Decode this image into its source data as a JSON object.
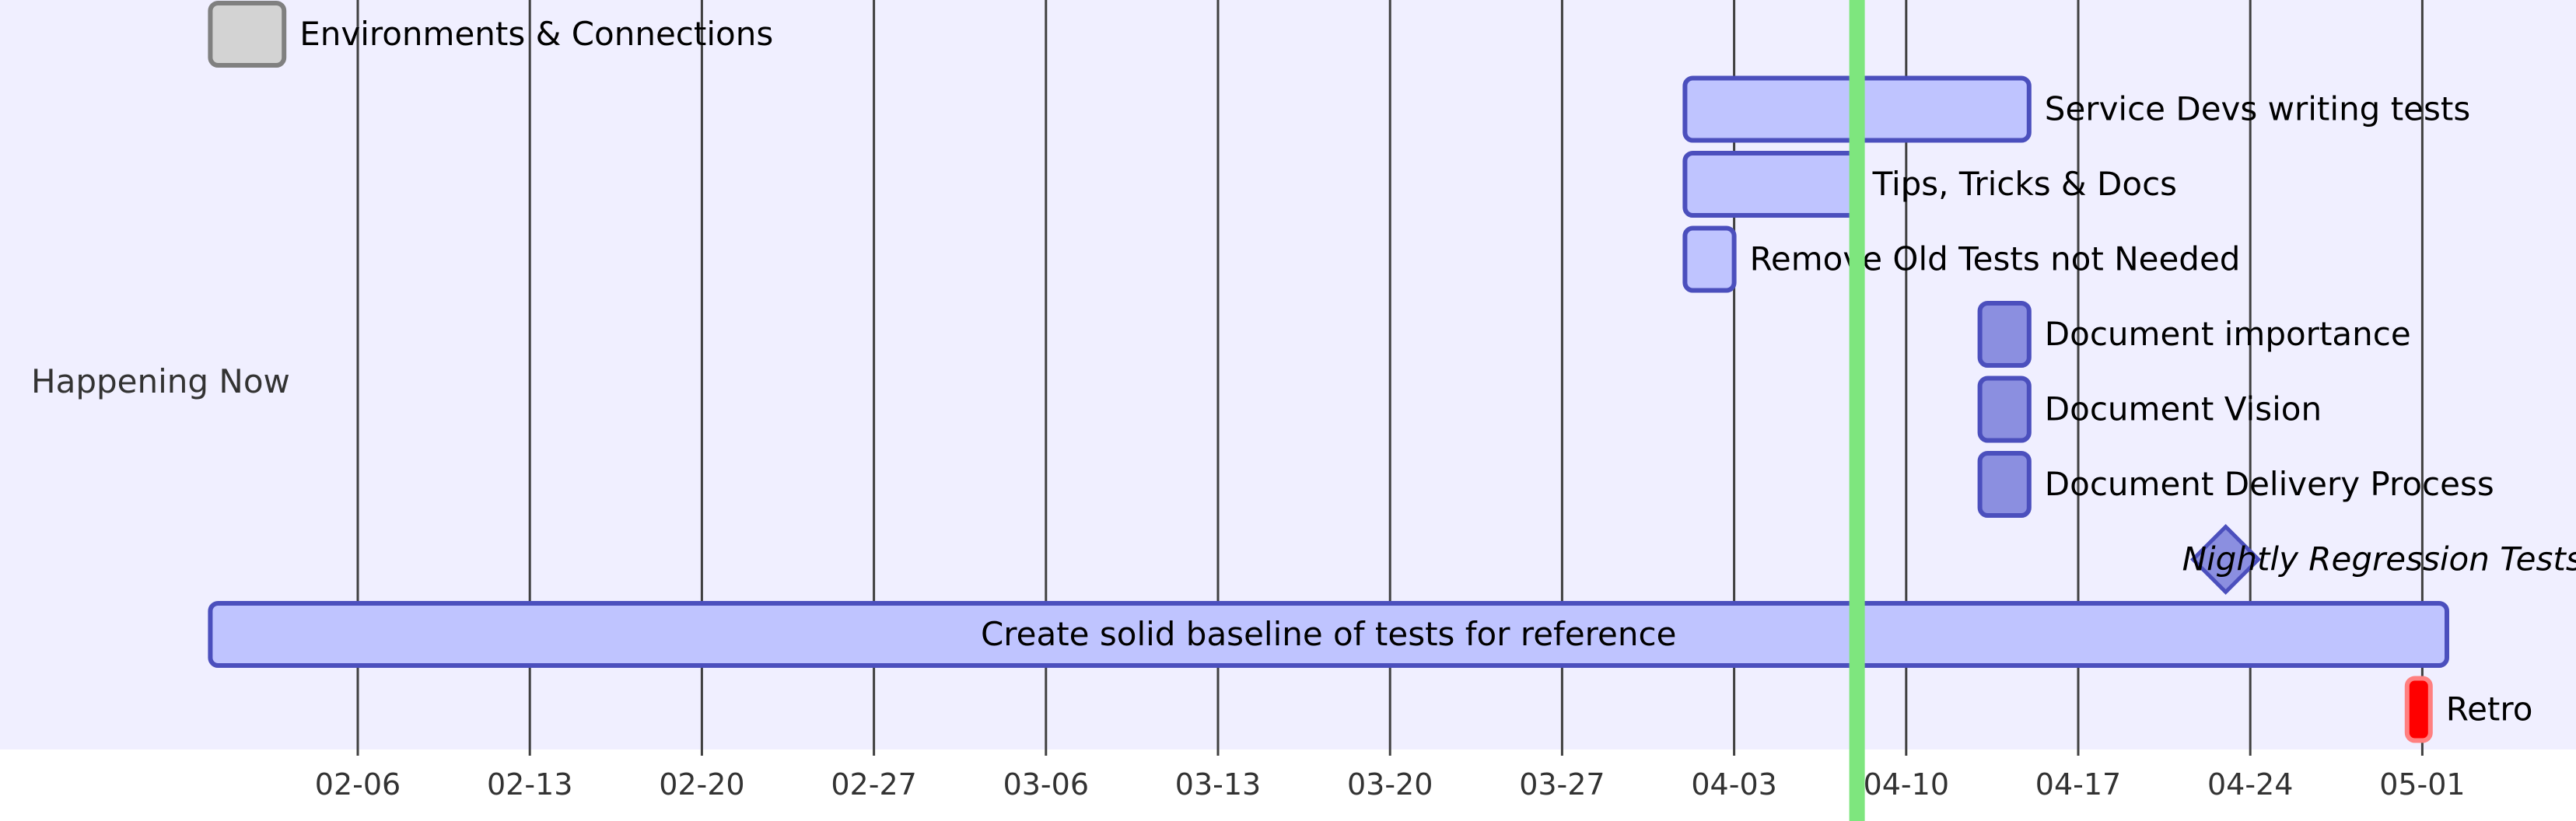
{
  "chart_data": {
    "type": "gantt",
    "x_axis": {
      "ticks": [
        "02-06",
        "02-13",
        "02-20",
        "02-27",
        "03-06",
        "03-13",
        "03-20",
        "03-27",
        "04-03",
        "04-10",
        "04-17",
        "04-24",
        "05-01"
      ]
    },
    "today_marker": "04-08",
    "sections": [
      {
        "name": "Happening Now"
      }
    ],
    "tasks": [
      {
        "label": "Environments & Connections",
        "start": "01-31",
        "end": "02-03",
        "status": "done"
      },
      {
        "label": "Service Devs writing tests",
        "start": "04-01",
        "end": "04-15",
        "status": "normal"
      },
      {
        "label": "Tips, Tricks & Docs",
        "start": "04-01",
        "end": "04-08",
        "status": "normal"
      },
      {
        "label": "Remove Old Tests not Needed",
        "start": "04-01",
        "end": "04-03",
        "status": "normal"
      },
      {
        "label": "Document importance",
        "start": "04-13",
        "end": "04-15",
        "status": "active"
      },
      {
        "label": "Document Vision",
        "start": "04-13",
        "end": "04-15",
        "status": "active"
      },
      {
        "label": "Document Delivery Process",
        "start": "04-13",
        "end": "04-15",
        "status": "active"
      },
      {
        "label": "Nightly Regression Tests",
        "start": "04-23",
        "end": "04-23",
        "status": "milestone"
      },
      {
        "label": "Create solid baseline of tests for reference",
        "start": "01-31",
        "end": "05-02",
        "status": "normal"
      },
      {
        "label": "Retro",
        "start": "04-30",
        "end": "05-01",
        "status": "critical"
      }
    ],
    "colors": {
      "section_background": "#f0efff",
      "normal_fill": "#bfc4ff",
      "active_fill": "#8b8fe0",
      "done_fill": "#d3d3d3",
      "done_stroke": "#808080",
      "task_stroke": "#4b4fbd",
      "critical_fill": "#ff0000",
      "critical_stroke": "#ff8080",
      "today_line": "#7ee67e",
      "grid_line": "#404040"
    }
  }
}
